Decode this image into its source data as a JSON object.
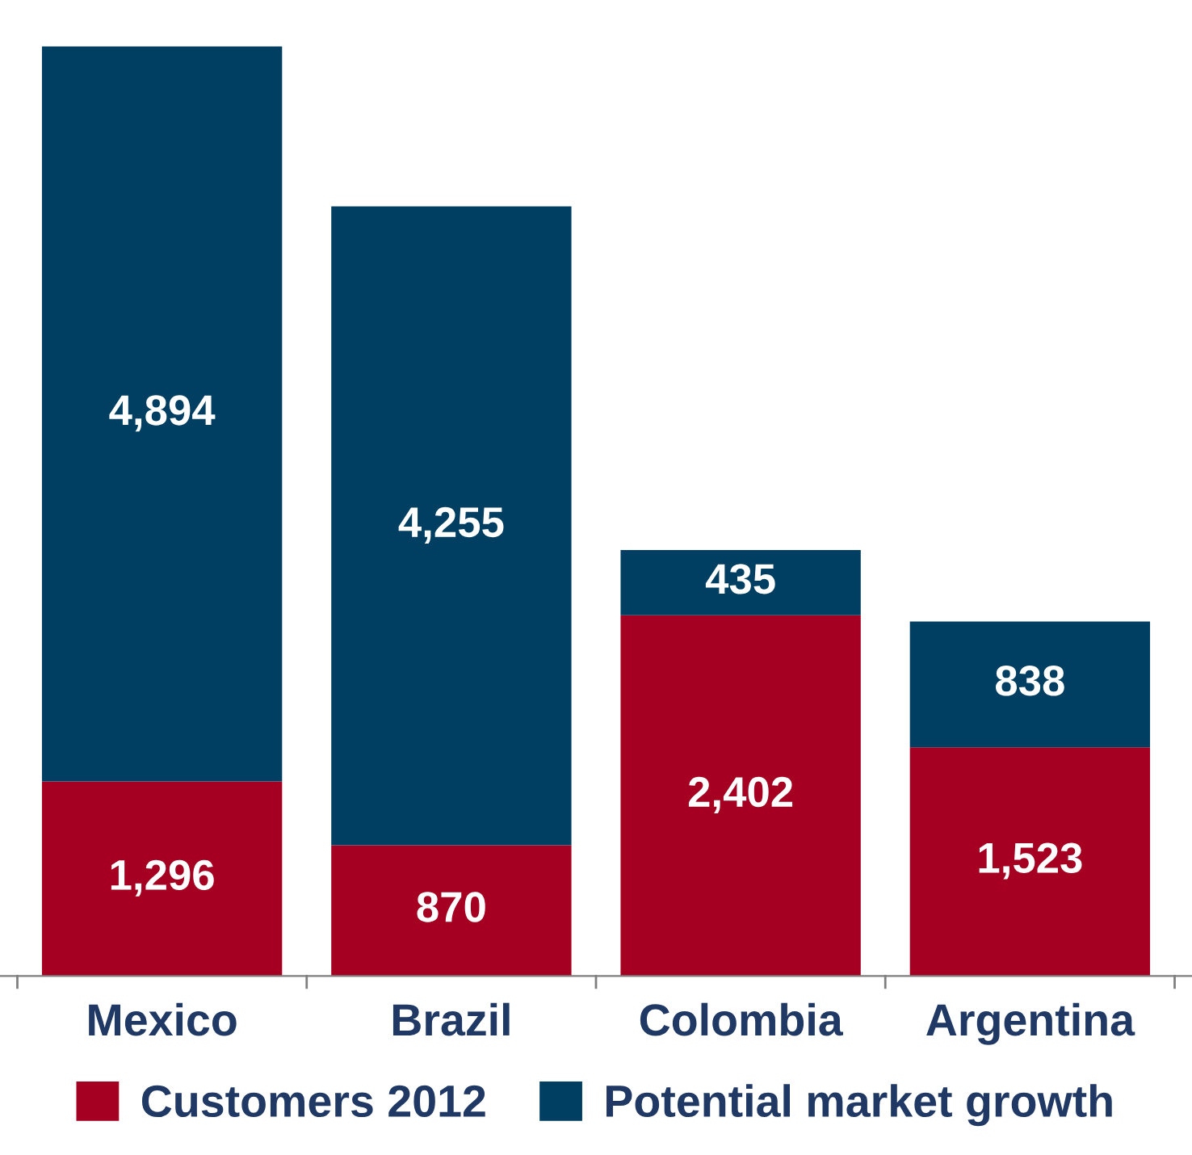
{
  "chart_data": {
    "type": "bar",
    "stacked": true,
    "categories": [
      "Mexico",
      "Brazil",
      "Colombia",
      "Argentina"
    ],
    "series": [
      {
        "name": "Customers 2012",
        "color": "#a50021",
        "values": [
          1296,
          870,
          2402,
          1523
        ],
        "value_labels": [
          "1,296",
          "870",
          "2,402",
          "1,523"
        ]
      },
      {
        "name": "Potential market growth",
        "color": "#003f62",
        "values": [
          4894,
          4255,
          435,
          838
        ],
        "value_labels": [
          "4,894",
          "4,255",
          "435",
          "838"
        ]
      }
    ],
    "legend": "bottom",
    "grid": false,
    "tick_labels": "x"
  }
}
